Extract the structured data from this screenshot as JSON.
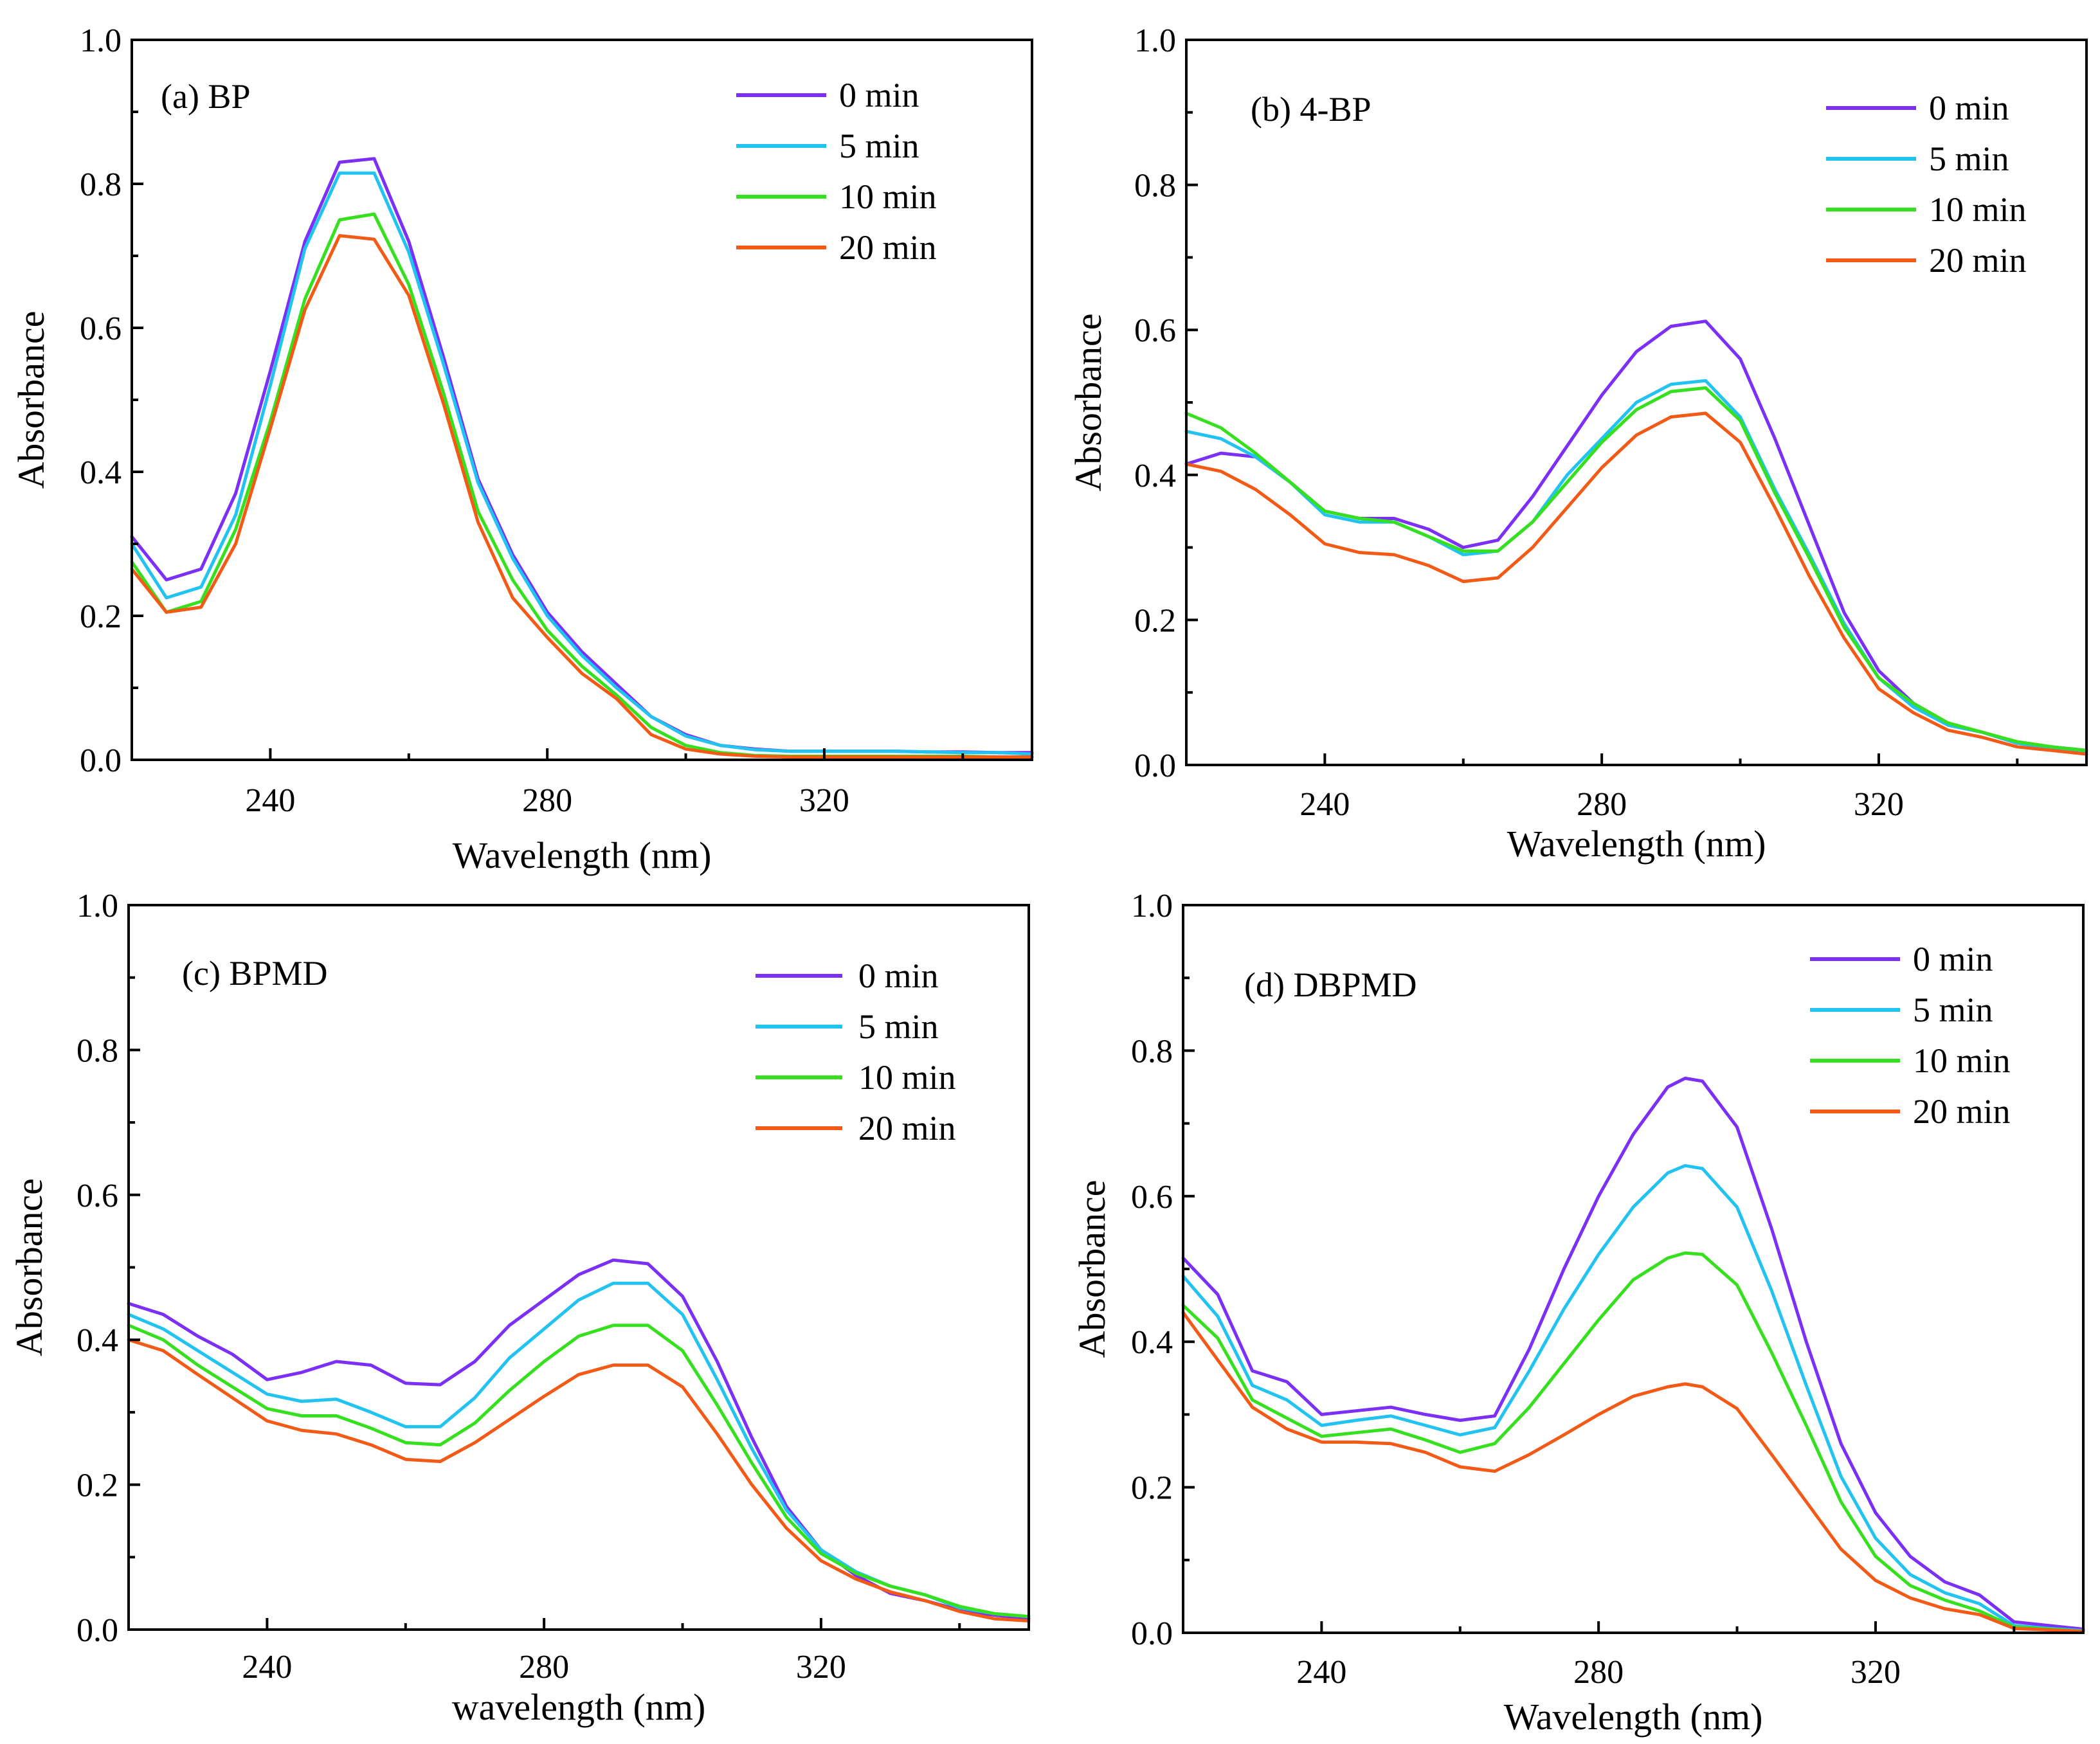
{
  "chart_data": [
    {
      "type": "line",
      "title": "(a) BP",
      "xlabel": "Wavelength (nm)",
      "ylabel": "Absorbance",
      "xlim": [
        220,
        350
      ],
      "ylim": [
        0.0,
        1.0
      ],
      "xticks": [
        240,
        280,
        320
      ],
      "yticks": [
        0.0,
        0.2,
        0.4,
        0.6,
        0.8,
        1.0
      ],
      "x": [
        220,
        225,
        230,
        235,
        240,
        245,
        250,
        255,
        260,
        265,
        270,
        275,
        280,
        285,
        290,
        295,
        300,
        305,
        310,
        315,
        320,
        325,
        330,
        335,
        340,
        345,
        350
      ],
      "series": [
        {
          "name": "0 min",
          "color": "#7B2FF7",
          "values": [
            0.31,
            0.25,
            0.265,
            0.37,
            0.54,
            0.72,
            0.83,
            0.835,
            0.72,
            0.56,
            0.39,
            0.285,
            0.205,
            0.15,
            0.105,
            0.06,
            0.035,
            0.02,
            0.015,
            0.012,
            0.012,
            0.012,
            0.012,
            0.011,
            0.011,
            0.01,
            0.01
          ]
        },
        {
          "name": "5 min",
          "color": "#22C3F0",
          "values": [
            0.3,
            0.225,
            0.24,
            0.34,
            0.52,
            0.71,
            0.815,
            0.815,
            0.705,
            0.55,
            0.385,
            0.28,
            0.2,
            0.145,
            0.1,
            0.06,
            0.033,
            0.02,
            0.014,
            0.012,
            0.012,
            0.012,
            0.012,
            0.011,
            0.01,
            0.01,
            0.008
          ]
        },
        {
          "name": "10 min",
          "color": "#36E01F",
          "values": [
            0.275,
            0.205,
            0.22,
            0.32,
            0.47,
            0.64,
            0.75,
            0.758,
            0.66,
            0.51,
            0.345,
            0.25,
            0.18,
            0.13,
            0.09,
            0.045,
            0.02,
            0.01,
            0.006,
            0.005,
            0.005,
            0.005,
            0.005,
            0.005,
            0.005,
            0.004,
            0.004
          ]
        },
        {
          "name": "20 min",
          "color": "#F25A16",
          "values": [
            0.265,
            0.205,
            0.212,
            0.3,
            0.46,
            0.625,
            0.728,
            0.723,
            0.645,
            0.495,
            0.33,
            0.225,
            0.17,
            0.12,
            0.085,
            0.035,
            0.015,
            0.008,
            0.005,
            0.004,
            0.004,
            0.004,
            0.004,
            0.004,
            0.004,
            0.004,
            0.004
          ]
        }
      ]
    },
    {
      "type": "line",
      "title": "(b) 4-BP",
      "xlabel": "Wavelength (nm)",
      "ylabel": "Absorbance",
      "xlim": [
        220,
        350
      ],
      "ylim": [
        0.0,
        1.0
      ],
      "xticks": [
        240,
        280,
        320
      ],
      "yticks": [
        0.0,
        0.2,
        0.4,
        0.6,
        0.8,
        1.0
      ],
      "x": [
        220,
        225,
        230,
        235,
        240,
        245,
        250,
        255,
        260,
        265,
        270,
        275,
        280,
        285,
        290,
        295,
        300,
        305,
        310,
        315,
        320,
        325,
        330,
        335,
        340,
        345,
        350
      ],
      "series": [
        {
          "name": "0 min",
          "color": "#7B2FF7",
          "values": [
            0.415,
            0.43,
            0.425,
            0.39,
            0.35,
            0.34,
            0.34,
            0.325,
            0.3,
            0.31,
            0.37,
            0.44,
            0.51,
            0.57,
            0.605,
            0.612,
            0.56,
            0.45,
            0.33,
            0.21,
            0.13,
            0.085,
            0.055,
            0.045,
            0.03,
            0.025,
            0.02
          ]
        },
        {
          "name": "5 min",
          "color": "#22C3F0",
          "values": [
            0.46,
            0.45,
            0.425,
            0.39,
            0.345,
            0.335,
            0.335,
            0.315,
            0.29,
            0.295,
            0.335,
            0.4,
            0.45,
            0.5,
            0.525,
            0.53,
            0.48,
            0.38,
            0.29,
            0.195,
            0.12,
            0.08,
            0.055,
            0.045,
            0.03,
            0.022,
            0.018
          ]
        },
        {
          "name": "10 min",
          "color": "#36E01F",
          "values": [
            0.485,
            0.465,
            0.43,
            0.39,
            0.35,
            0.34,
            0.335,
            0.315,
            0.295,
            0.295,
            0.335,
            0.39,
            0.445,
            0.49,
            0.515,
            0.52,
            0.475,
            0.375,
            0.285,
            0.19,
            0.12,
            0.085,
            0.058,
            0.045,
            0.032,
            0.025,
            0.02
          ]
        },
        {
          "name": "20 min",
          "color": "#F25A16",
          "values": [
            0.415,
            0.405,
            0.38,
            0.345,
            0.305,
            0.293,
            0.29,
            0.275,
            0.253,
            0.258,
            0.3,
            0.355,
            0.41,
            0.455,
            0.48,
            0.485,
            0.445,
            0.355,
            0.26,
            0.175,
            0.105,
            0.072,
            0.048,
            0.038,
            0.025,
            0.02,
            0.015
          ]
        }
      ]
    },
    {
      "type": "line",
      "title": "(c) BPMD",
      "xlabel": "wavelength (nm)",
      "ylabel": "Absorbance",
      "xlim": [
        220,
        350
      ],
      "ylim": [
        0.0,
        1.0
      ],
      "xticks": [
        240,
        280,
        320
      ],
      "yticks": [
        0.0,
        0.2,
        0.4,
        0.6,
        0.8,
        1.0
      ],
      "x": [
        220,
        225,
        230,
        235,
        240,
        245,
        250,
        255,
        260,
        265,
        270,
        275,
        280,
        285,
        290,
        295,
        300,
        305,
        310,
        315,
        320,
        325,
        330,
        335,
        340,
        345,
        350
      ],
      "series": [
        {
          "name": "0 min",
          "color": "#7B2FF7",
          "values": [
            0.45,
            0.435,
            0.405,
            0.38,
            0.345,
            0.355,
            0.37,
            0.365,
            0.34,
            0.338,
            0.37,
            0.42,
            0.455,
            0.49,
            0.51,
            0.505,
            0.46,
            0.37,
            0.265,
            0.17,
            0.11,
            0.075,
            0.05,
            0.04,
            0.027,
            0.02,
            0.015
          ]
        },
        {
          "name": "5 min",
          "color": "#22C3F0",
          "values": [
            0.435,
            0.415,
            0.385,
            0.355,
            0.325,
            0.315,
            0.318,
            0.3,
            0.28,
            0.28,
            0.32,
            0.375,
            0.415,
            0.455,
            0.478,
            0.478,
            0.435,
            0.345,
            0.25,
            0.165,
            0.11,
            0.08,
            0.06,
            0.048,
            0.03,
            0.022,
            0.018
          ]
        },
        {
          "name": "10 min",
          "color": "#36E01F",
          "values": [
            0.42,
            0.4,
            0.365,
            0.335,
            0.305,
            0.295,
            0.295,
            0.278,
            0.258,
            0.255,
            0.285,
            0.33,
            0.37,
            0.405,
            0.42,
            0.42,
            0.385,
            0.31,
            0.23,
            0.155,
            0.105,
            0.078,
            0.06,
            0.048,
            0.032,
            0.022,
            0.018
          ]
        },
        {
          "name": "20 min",
          "color": "#F25A16",
          "values": [
            0.4,
            0.385,
            0.352,
            0.32,
            0.288,
            0.275,
            0.27,
            0.255,
            0.235,
            0.232,
            0.258,
            0.29,
            0.322,
            0.352,
            0.365,
            0.365,
            0.335,
            0.27,
            0.2,
            0.14,
            0.095,
            0.07,
            0.052,
            0.04,
            0.025,
            0.015,
            0.012
          ]
        }
      ]
    },
    {
      "type": "line",
      "title": "(d) DBPMD",
      "xlabel": "Wavelength (nm)",
      "ylabel": "Absorbance",
      "xlim": [
        220,
        350
      ],
      "ylim": [
        0.0,
        1.0
      ],
      "xticks": [
        240,
        280,
        320
      ],
      "yticks": [
        0.0,
        0.2,
        0.4,
        0.6,
        0.8,
        1.0
      ],
      "x": [
        220,
        225,
        230,
        235,
        240,
        245,
        250,
        255,
        260,
        265,
        270,
        275,
        280,
        285,
        290,
        292.5,
        295,
        300,
        305,
        310,
        315,
        320,
        325,
        330,
        335,
        340,
        345,
        350
      ],
      "series": [
        {
          "name": "0 min",
          "color": "#7B2FF7",
          "values": [
            0.515,
            0.465,
            0.36,
            0.345,
            0.3,
            0.305,
            0.31,
            0.3,
            0.292,
            0.298,
            0.39,
            0.5,
            0.6,
            0.685,
            0.75,
            0.762,
            0.758,
            0.695,
            0.555,
            0.4,
            0.26,
            0.165,
            0.105,
            0.07,
            0.052,
            0.015,
            0.01,
            0.005
          ]
        },
        {
          "name": "5 min",
          "color": "#22C3F0",
          "values": [
            0.49,
            0.435,
            0.34,
            0.32,
            0.285,
            0.292,
            0.298,
            0.285,
            0.272,
            0.282,
            0.36,
            0.445,
            0.52,
            0.585,
            0.632,
            0.642,
            0.638,
            0.585,
            0.47,
            0.34,
            0.215,
            0.13,
            0.08,
            0.055,
            0.04,
            0.01,
            0.006,
            0.003
          ]
        },
        {
          "name": "10 min",
          "color": "#36E01F",
          "values": [
            0.45,
            0.405,
            0.32,
            0.295,
            0.27,
            0.275,
            0.28,
            0.265,
            0.248,
            0.26,
            0.31,
            0.37,
            0.43,
            0.485,
            0.515,
            0.522,
            0.52,
            0.478,
            0.385,
            0.285,
            0.18,
            0.105,
            0.065,
            0.045,
            0.03,
            0.008,
            0.005,
            0.002
          ]
        },
        {
          "name": "20 min",
          "color": "#F25A16",
          "values": [
            0.44,
            0.375,
            0.31,
            0.28,
            0.262,
            0.262,
            0.26,
            0.248,
            0.228,
            0.222,
            0.245,
            0.272,
            0.3,
            0.325,
            0.338,
            0.342,
            0.338,
            0.308,
            0.245,
            0.18,
            0.115,
            0.072,
            0.048,
            0.033,
            0.025,
            0.006,
            0.004,
            0.002
          ]
        }
      ]
    }
  ]
}
